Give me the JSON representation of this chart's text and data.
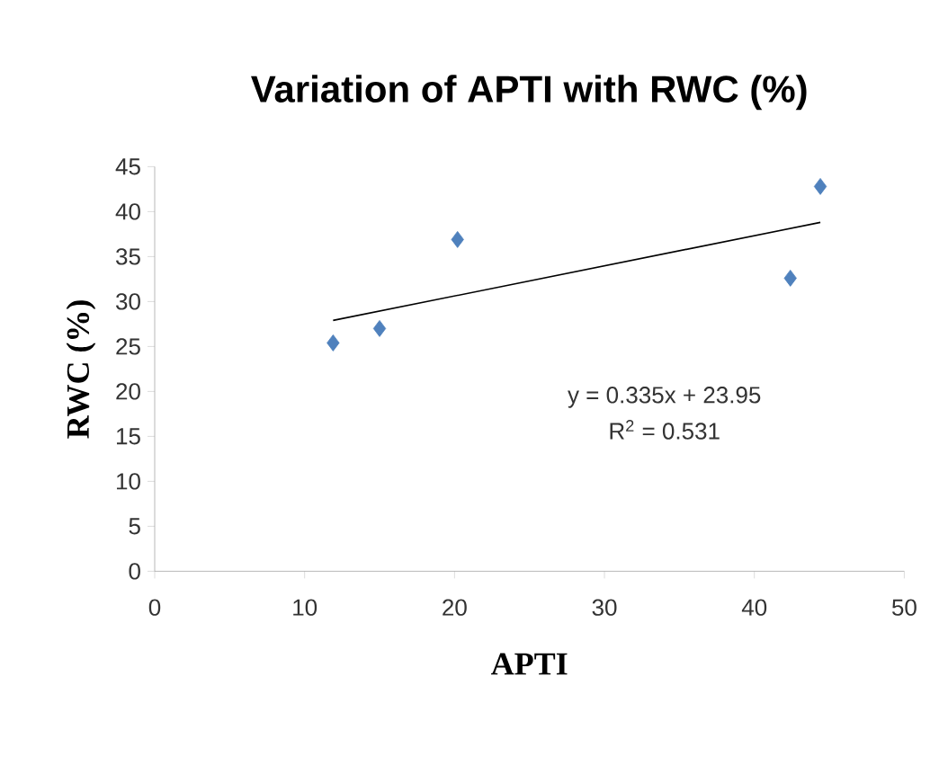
{
  "chart_data": {
    "type": "scatter",
    "title": "Variation of APTI with RWC (%)",
    "xlabel": "APTI",
    "ylabel": "RWC (%)",
    "series": [
      {
        "color": "#4f81bd",
        "marker": "diamond",
        "x": [
          11.9,
          15.0,
          20.2,
          42.4,
          44.4
        ],
        "values": [
          25.4,
          27.0,
          36.9,
          32.6,
          42.8
        ]
      },
      {
        "type": "line",
        "color": "#000000",
        "marker": "none",
        "x": [
          11.9,
          44.4
        ],
        "values": [
          27.9,
          38.8
        ]
      }
    ],
    "xlim": [
      0,
      50
    ],
    "xticks": [
      0,
      10,
      20,
      30,
      40,
      50
    ],
    "ylim": [
      0,
      45
    ],
    "yticks": [
      0,
      5,
      10,
      15,
      20,
      25,
      30,
      35,
      40,
      45
    ],
    "grid": false,
    "annotations": [
      "y = 0.335x + 23.95",
      "R$^{2}$ = 0.531"
    ]
  }
}
